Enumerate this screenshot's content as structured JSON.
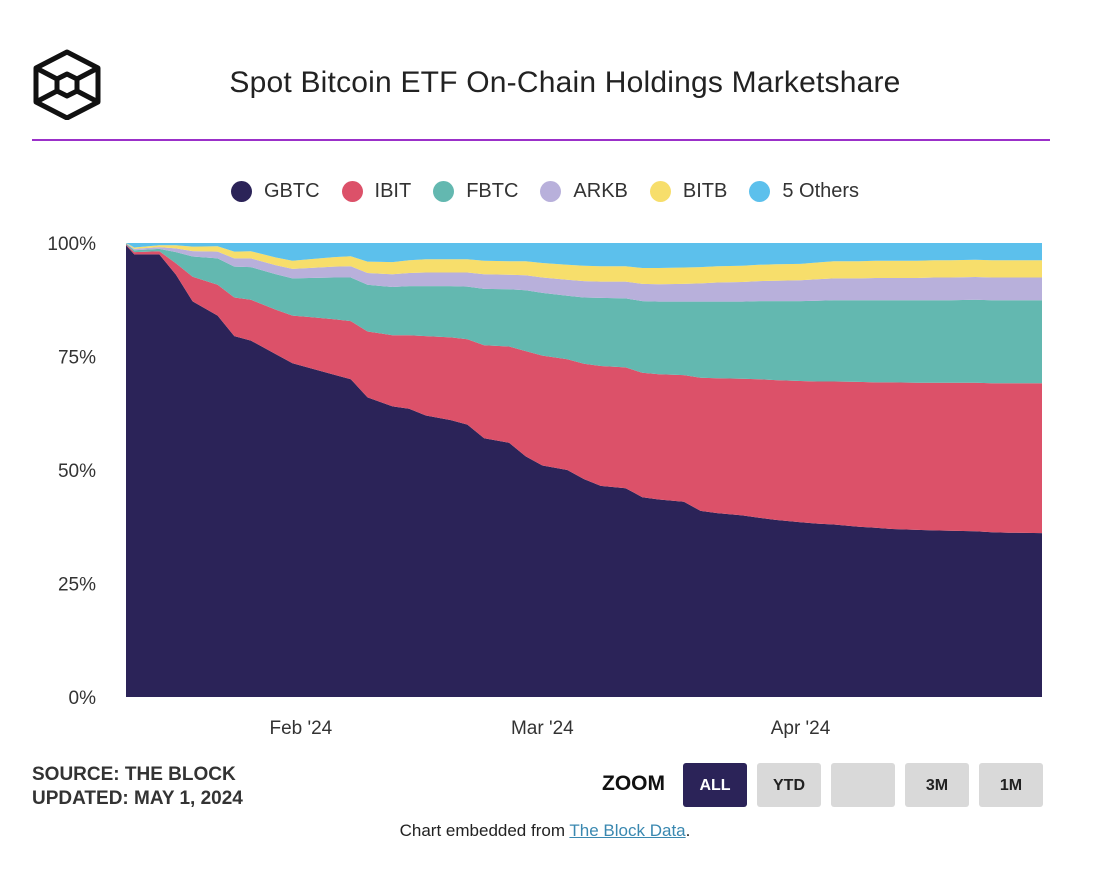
{
  "header": {
    "title": "Spot Bitcoin ETF On-Chain Holdings Marketshare"
  },
  "legend": [
    {
      "name": "GBTC",
      "color": "#2b2358"
    },
    {
      "name": "IBIT",
      "color": "#dc5169"
    },
    {
      "name": "FBTC",
      "color": "#63b8b0"
    },
    {
      "name": "ARKB",
      "color": "#b8b0db"
    },
    {
      "name": "BITB",
      "color": "#f7de6b"
    },
    {
      "name": "5 Others",
      "color": "#5cc0ec"
    }
  ],
  "chart_data": {
    "type": "area",
    "stacking": "percent",
    "title": "Spot Bitcoin ETF On-Chain Holdings Marketshare",
    "ylabel": "",
    "xlabel": "",
    "ylim": [
      0,
      100
    ],
    "y_ticks": [
      "0%",
      "25%",
      "50%",
      "75%",
      "100%"
    ],
    "y_tick_values": [
      0,
      25,
      50,
      75,
      100
    ],
    "x_ticks": [
      {
        "label": "Feb '24",
        "date": "2024-02-01"
      },
      {
        "label": "Mar '24",
        "date": "2024-03-01"
      },
      {
        "label": "Apr '24",
        "date": "2024-04-01"
      }
    ],
    "x_range": [
      "2024-01-11",
      "2024-04-30"
    ],
    "dates": [
      "2024-01-11",
      "2024-01-12",
      "2024-01-15",
      "2024-01-17",
      "2024-01-19",
      "2024-01-22",
      "2024-01-24",
      "2024-01-26",
      "2024-01-29",
      "2024-01-31",
      "2024-02-02",
      "2024-02-05",
      "2024-02-07",
      "2024-02-09",
      "2024-02-12",
      "2024-02-14",
      "2024-02-16",
      "2024-02-19",
      "2024-02-21",
      "2024-02-23",
      "2024-02-26",
      "2024-02-28",
      "2024-03-01",
      "2024-03-04",
      "2024-03-06",
      "2024-03-08",
      "2024-03-11",
      "2024-03-13",
      "2024-03-15",
      "2024-03-18",
      "2024-03-20",
      "2024-03-22",
      "2024-03-25",
      "2024-03-27",
      "2024-03-29",
      "2024-04-01",
      "2024-04-03",
      "2024-04-05",
      "2024-04-08",
      "2024-04-10",
      "2024-04-12",
      "2024-04-15",
      "2024-04-17",
      "2024-04-19",
      "2024-04-22",
      "2024-04-24",
      "2024-04-26",
      "2024-04-30"
    ],
    "series": [
      {
        "name": "GBTC",
        "color": "#2b2358",
        "values": [
          99.5,
          97.5,
          97.5,
          93,
          88,
          84,
          79.5,
          78.5,
          75.5,
          73.5,
          72.5,
          71,
          70,
          66,
          64,
          63.5,
          62,
          61,
          60,
          57,
          56,
          53,
          51,
          50,
          48,
          46.5,
          46,
          44,
          43.5,
          43,
          41,
          40.5,
          40,
          39.5,
          39,
          38.5,
          38.2,
          38,
          37.5,
          37.3,
          37,
          36.8,
          36.7,
          36.6,
          36.5,
          36.3,
          36.2,
          36.1
        ]
      },
      {
        "name": "IBIT",
        "color": "#dc5169",
        "values": [
          0.2,
          0.5,
          0.7,
          2.5,
          5.5,
          6.8,
          8.5,
          9,
          9.8,
          10.5,
          11.2,
          12.2,
          12.8,
          14.5,
          15.7,
          16.2,
          17.5,
          18.2,
          18.8,
          20.5,
          21.2,
          23.2,
          24.2,
          24.4,
          25.4,
          26.4,
          26.6,
          27.4,
          27.6,
          27.9,
          29.3,
          29.7,
          30.1,
          30.5,
          30.8,
          31.1,
          31.3,
          31.5,
          31.9,
          32.0,
          32.3,
          32.4,
          32.5,
          32.6,
          32.7,
          32.8,
          32.9,
          33.0
        ]
      },
      {
        "name": "FBTC",
        "color": "#63b8b0",
        "values": [
          0.2,
          0.4,
          0.5,
          2.5,
          4.5,
          5.8,
          6.8,
          7.2,
          7.8,
          8.2,
          8.6,
          9.2,
          9.6,
          10.3,
          10.6,
          10.8,
          11,
          11.3,
          11.6,
          12.4,
          12.6,
          13.4,
          13.8,
          14,
          14.6,
          15.0,
          15.2,
          15.8,
          16.0,
          16.2,
          16.8,
          16.9,
          17.0,
          17.2,
          17.4,
          17.6,
          17.8,
          17.9,
          18.0,
          18.1,
          18.1,
          18.2,
          18.2,
          18.2,
          18.3,
          18.3,
          18.3,
          18.3
        ]
      },
      {
        "name": "ARKB",
        "color": "#b8b0db",
        "values": [
          0.05,
          0.3,
          0.4,
          0.8,
          1.2,
          1.5,
          1.8,
          1.9,
          2.0,
          2.1,
          2.2,
          2.4,
          2.5,
          2.6,
          2.8,
          2.9,
          3.0,
          3.0,
          3.1,
          3.2,
          3.2,
          3.3,
          3.4,
          3.5,
          3.6,
          3.6,
          3.7,
          3.8,
          3.8,
          3.9,
          4.0,
          4.2,
          4.3,
          4.4,
          4.5,
          4.6,
          4.7,
          4.8,
          4.8,
          4.9,
          4.9,
          4.9,
          5.0,
          5.0,
          5.0,
          5.0,
          5.0,
          5.0
        ]
      },
      {
        "name": "BITB",
        "color": "#f7de6b",
        "values": [
          0.05,
          0.3,
          0.4,
          0.7,
          1.0,
          1.2,
          1.5,
          1.6,
          1.7,
          1.8,
          1.9,
          2.1,
          2.2,
          2.5,
          2.7,
          2.8,
          2.9,
          2.9,
          2.9,
          3.0,
          3.0,
          3.1,
          3.2,
          3.3,
          3.4,
          3.4,
          3.4,
          3.5,
          3.6,
          3.6,
          3.6,
          3.6,
          3.6,
          3.6,
          3.6,
          3.6,
          3.7,
          3.8,
          3.8,
          3.8,
          3.8,
          3.8,
          3.8,
          3.8,
          3.8,
          3.8,
          3.8,
          3.8
        ]
      },
      {
        "name": "5 Others",
        "color": "#5cc0ec",
        "values": [
          0.0,
          1.0,
          0.5,
          0.5,
          0.8,
          0.7,
          1.9,
          1.8,
          3.2,
          3.9,
          3.6,
          3.1,
          2.9,
          4.1,
          4.2,
          3.8,
          3.6,
          3.6,
          3.6,
          3.9,
          4.0,
          4.0,
          4.4,
          4.8,
          5.0,
          5.1,
          5.1,
          5.5,
          5.5,
          5.4,
          5.3,
          5.1,
          5.0,
          4.8,
          4.7,
          4.6,
          4.3,
          4.0,
          4.0,
          3.9,
          3.9,
          3.9,
          3.8,
          3.8,
          3.7,
          3.8,
          3.8,
          3.8
        ]
      }
    ]
  },
  "footer": {
    "source_line": "SOURCE: THE BLOCK",
    "updated_line": "UPDATED: MAY 1, 2024",
    "zoom_label": "ZOOM",
    "zoom_buttons": [
      "ALL",
      "YTD",
      "",
      "3M",
      "1M"
    ],
    "embed_prefix": "Chart embedded from ",
    "embed_link": "The Block Data",
    "embed_suffix": "."
  }
}
